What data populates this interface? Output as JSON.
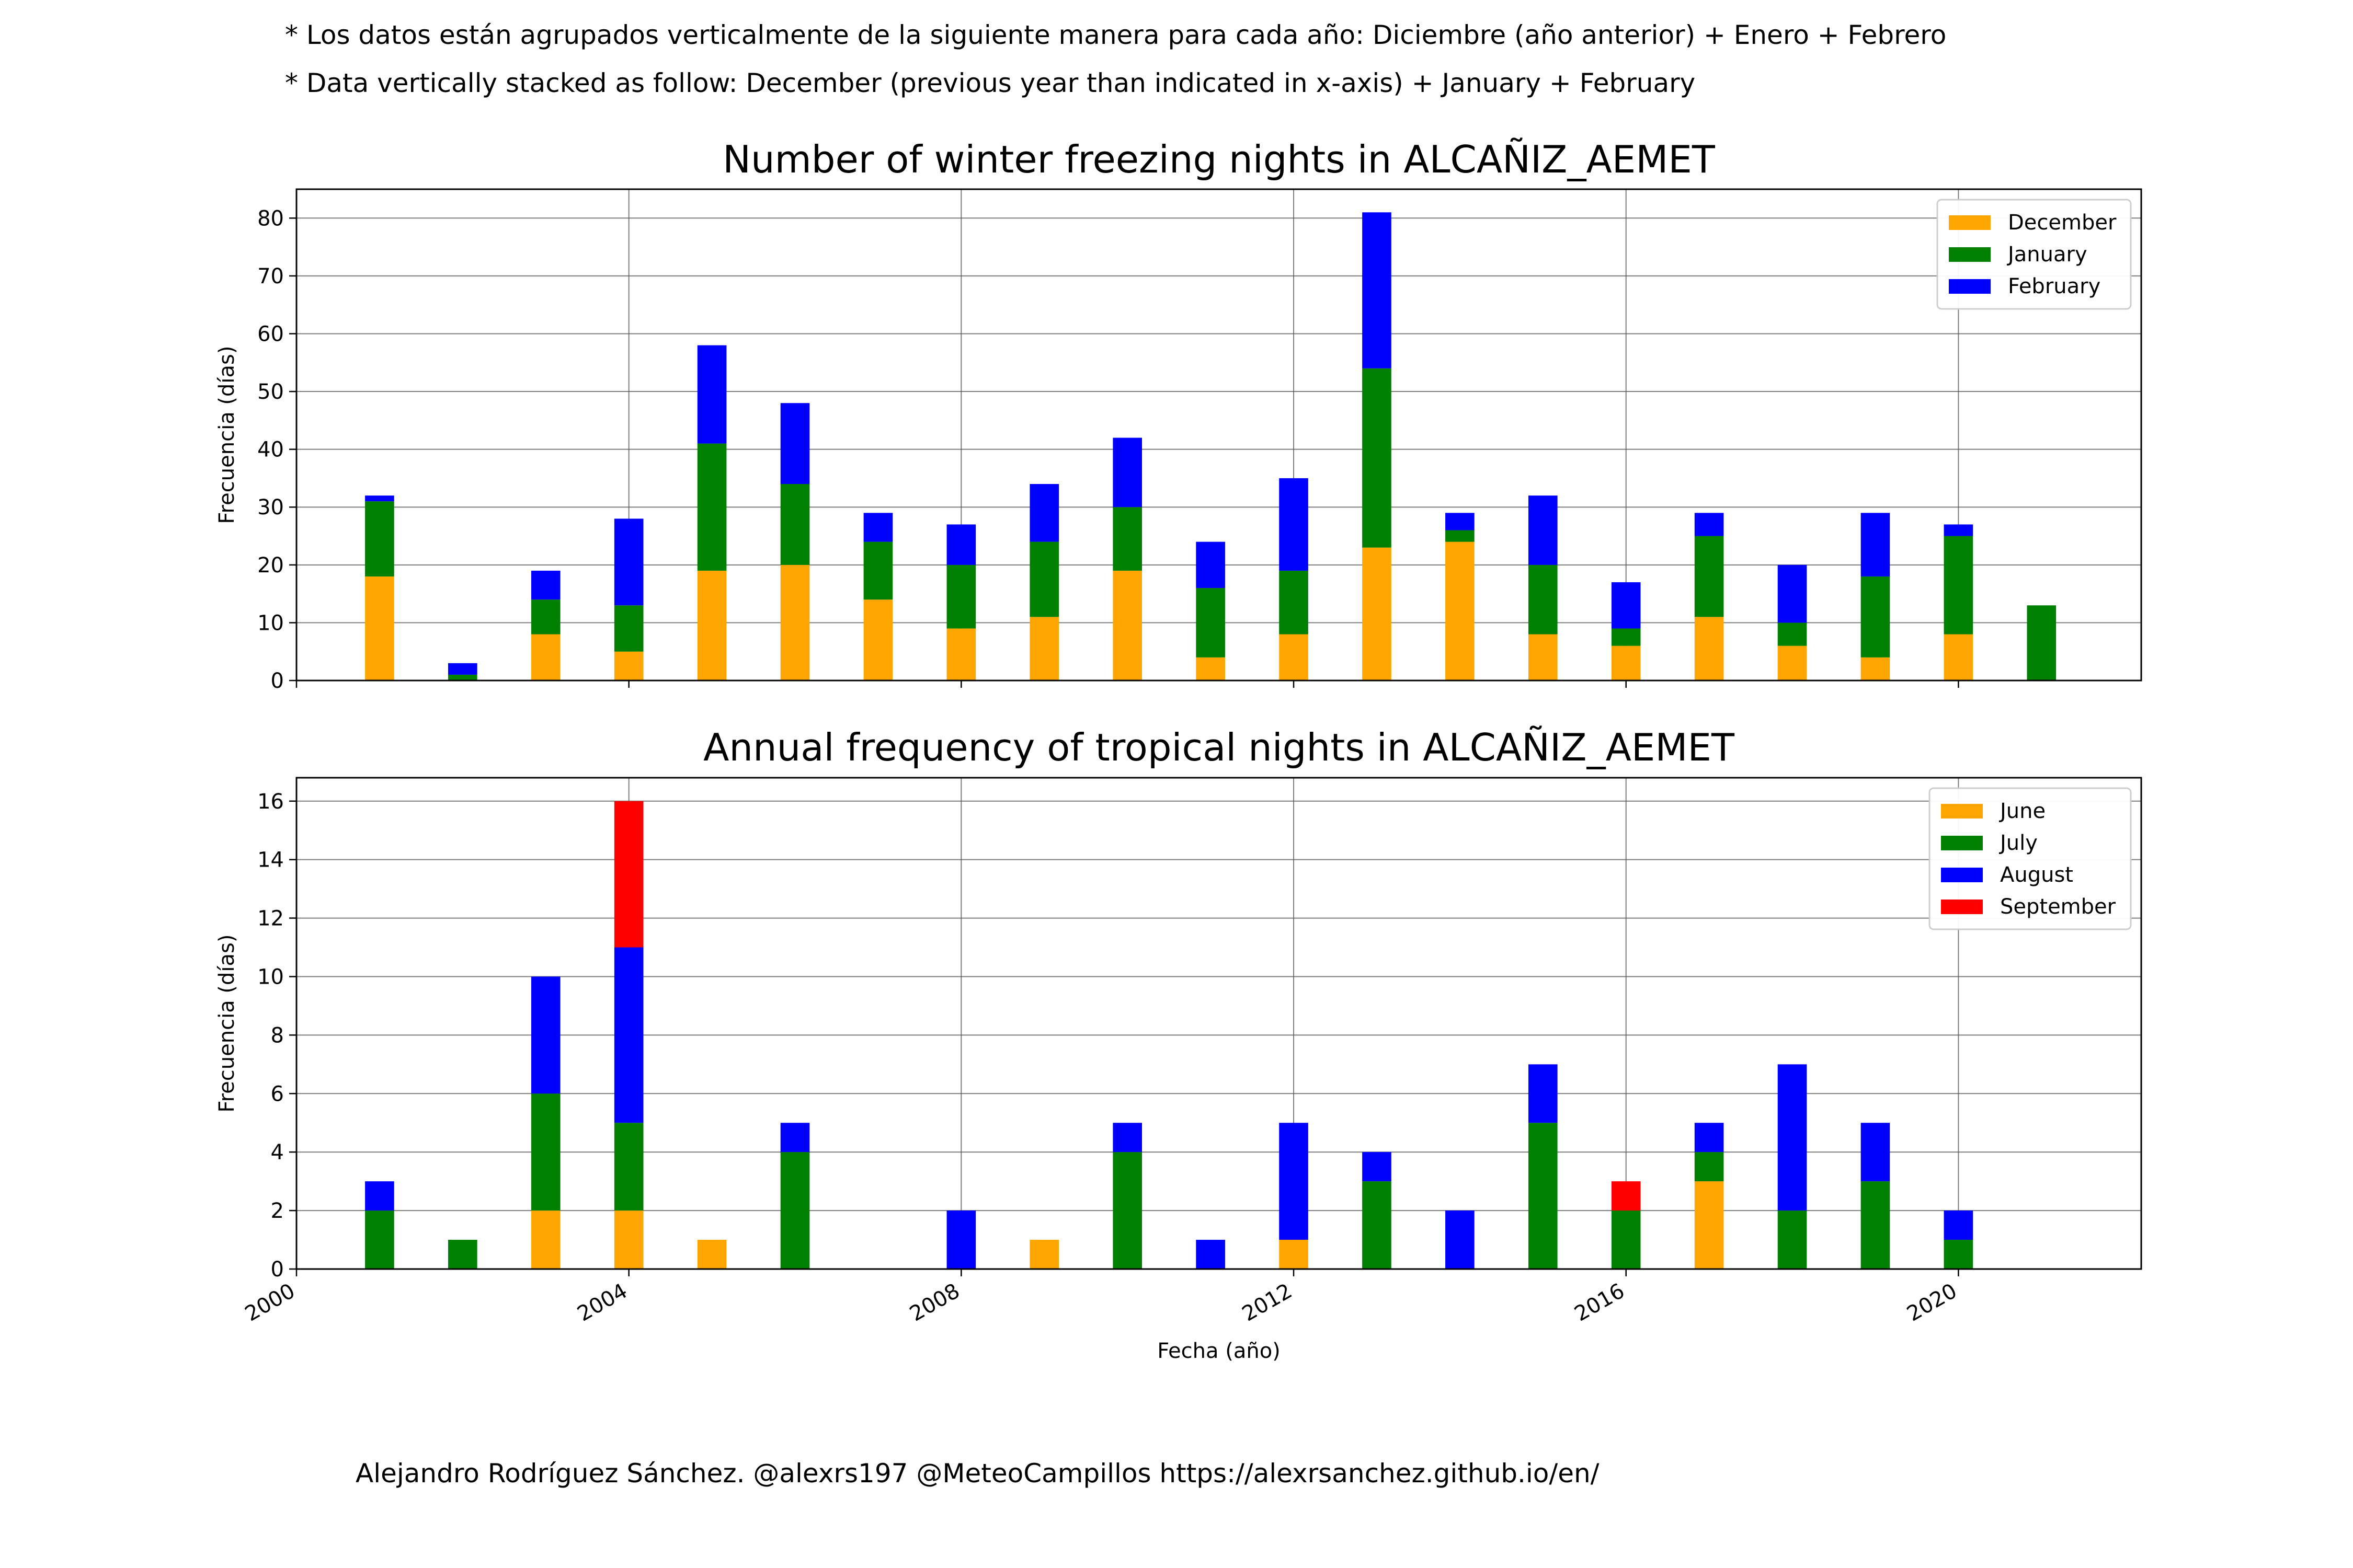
{
  "notes": {
    "line1": "* Los datos están agrupados verticalmente de la siguiente manera para cada año: Diciembre (año anterior) + Enero  + Febrero",
    "line2": "* Data vertically stacked as follow: December (previous year than indicated in x-axis) + January  + February"
  },
  "credit": "Alejandro Rodríguez Sánchez. @alexrs197 @MeteoCampillos   https://alexrsanchez.github.io/en/",
  "colors": {
    "orange": "#FFA500",
    "green": "#008000",
    "blue": "#0000FF",
    "red": "#FF0000"
  },
  "chart_data": [
    {
      "type": "bar",
      "stacked": true,
      "title": "Number of winter freezing nights in ALCAÑIZ_AEMET",
      "ylabel": "Frecuencia (días)",
      "xlabel": "",
      "xlim": [
        2000,
        2022.2
      ],
      "ylim": [
        0,
        85
      ],
      "yticks": [
        0,
        10,
        20,
        30,
        40,
        50,
        60,
        70,
        80
      ],
      "xticks": [
        2000,
        2004,
        2008,
        2012,
        2016,
        2020
      ],
      "grid": true,
      "legend_position": "top-right",
      "x": [
        2001,
        2002,
        2003,
        2004,
        2005,
        2006,
        2007,
        2008,
        2009,
        2010,
        2011,
        2012,
        2013,
        2014,
        2015,
        2016,
        2017,
        2018,
        2019,
        2020,
        2021
      ],
      "series": [
        {
          "name": "December",
          "color": "#FFA500",
          "values": [
            18,
            0,
            8,
            5,
            19,
            20,
            14,
            9,
            11,
            19,
            4,
            8,
            23,
            24,
            8,
            6,
            11,
            6,
            4,
            8,
            0
          ]
        },
        {
          "name": "January",
          "color": "#008000",
          "values": [
            13,
            1,
            6,
            8,
            22,
            14,
            10,
            11,
            13,
            11,
            12,
            11,
            31,
            2,
            12,
            3,
            14,
            4,
            14,
            17,
            13
          ]
        },
        {
          "name": "February",
          "color": "#0000FF",
          "values": [
            1,
            2,
            5,
            15,
            17,
            14,
            5,
            7,
            10,
            12,
            8,
            16,
            27,
            3,
            12,
            8,
            4,
            10,
            11,
            2,
            0
          ]
        }
      ]
    },
    {
      "type": "bar",
      "stacked": true,
      "title": "Annual frequency of tropical nights in ALCAÑIZ_AEMET",
      "ylabel": "Frecuencia (días)",
      "xlabel": "Fecha (año)",
      "xlim": [
        2000,
        2022.2
      ],
      "ylim": [
        0,
        16.8
      ],
      "yticks": [
        0,
        2,
        4,
        6,
        8,
        10,
        12,
        14,
        16
      ],
      "xticks": [
        2000,
        2004,
        2008,
        2012,
        2016,
        2020
      ],
      "grid": true,
      "legend_position": "top-right",
      "x": [
        2001,
        2002,
        2003,
        2004,
        2005,
        2006,
        2007,
        2008,
        2009,
        2010,
        2011,
        2012,
        2013,
        2014,
        2015,
        2016,
        2017,
        2018,
        2019,
        2020,
        2021
      ],
      "series": [
        {
          "name": "June",
          "color": "#FFA500",
          "values": [
            0,
            0,
            2,
            2,
            1,
            0,
            0,
            0,
            1,
            0,
            0,
            1,
            0,
            0,
            0,
            0,
            3,
            0,
            0,
            0,
            0
          ]
        },
        {
          "name": "July",
          "color": "#008000",
          "values": [
            2,
            1,
            4,
            3,
            0,
            4,
            0,
            0,
            0,
            4,
            0,
            0,
            3,
            0,
            5,
            2,
            1,
            2,
            3,
            1,
            0
          ]
        },
        {
          "name": "August",
          "color": "#0000FF",
          "values": [
            1,
            0,
            4,
            6,
            0,
            1,
            0,
            2,
            0,
            1,
            1,
            4,
            1,
            2,
            2,
            0,
            1,
            5,
            2,
            1,
            0
          ]
        },
        {
          "name": "September",
          "color": "#FF0000",
          "values": [
            0,
            0,
            0,
            5,
            0,
            0,
            0,
            0,
            0,
            0,
            0,
            0,
            0,
            0,
            0,
            1,
            0,
            0,
            0,
            0,
            0
          ]
        }
      ]
    }
  ]
}
